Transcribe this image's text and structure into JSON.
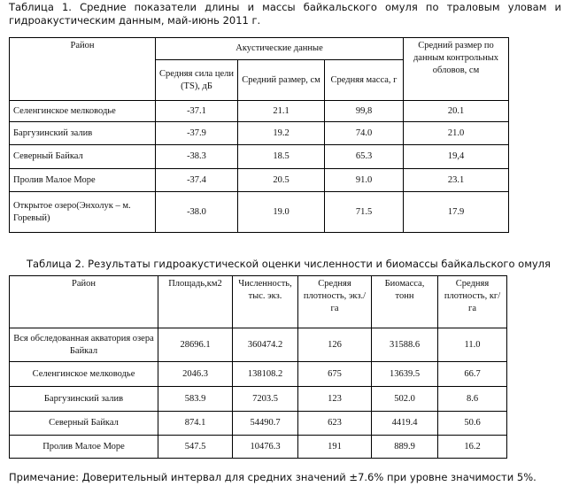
{
  "table1": {
    "caption": "Таблица 1. Средние показатели длины и массы байкальского омуля по траловым уловам и гидроакустическим данным, май-июнь 2011 г.",
    "group_header": "Акустические данные",
    "headers": [
      "Район",
      "Средняя сила цели (TS), дБ",
      "Средний размер, см",
      "Средняя масса, г",
      "Средний размер по данным контрольных обловов, см"
    ],
    "rows": [
      [
        "Селенгинское мелководье",
        "-37.1",
        "21.1",
        "99,8",
        "20.1"
      ],
      [
        "Баргузинский залив",
        "-37.9",
        "19.2",
        "74.0",
        "21.0"
      ],
      [
        "Северный Байкал",
        "-38.3",
        "18.5",
        "65.3",
        "19,4"
      ],
      [
        "Пролив Малое Море",
        "-37.4",
        "20.5",
        "91.0",
        "23.1"
      ],
      [
        "Открытое озеро(Энхолук – м. Горевый)",
        "-38.0",
        "19.0",
        "71.5",
        "17.9"
      ]
    ]
  },
  "table2": {
    "caption": "Таблица 2. Результаты гидроакустической оценки численности и биомассы байкальского омуля",
    "headers": [
      "Район",
      "Площадь,км2",
      "Численность, тыс. экз.",
      "Средняя плотность, экз./га",
      "Биомасса, тонн",
      "Средняя плотность, кг/га"
    ],
    "rows": [
      [
        "Вся обследованная акватория озера Байкал",
        "28696.1",
        "360474.2",
        "126",
        "31588.6",
        "11.0"
      ],
      [
        "Селенгинское мелководье",
        "2046.3",
        "138108.2",
        "675",
        "13639.5",
        "66.7"
      ],
      [
        "Баргузинский залив",
        "583.9",
        "7203.5",
        "123",
        "502.0",
        "8.6"
      ],
      [
        "Северный Байкал",
        "874.1",
        "54490.7",
        "623",
        "4419.4",
        "50.6"
      ],
      [
        "Пролив Малое Море",
        "547.5",
        "10476.3",
        "191",
        "889.9",
        "16.2"
      ]
    ]
  },
  "note": "Примечание: Доверительный интервал для средних значений ±7.6% при уровне значимости 5%."
}
